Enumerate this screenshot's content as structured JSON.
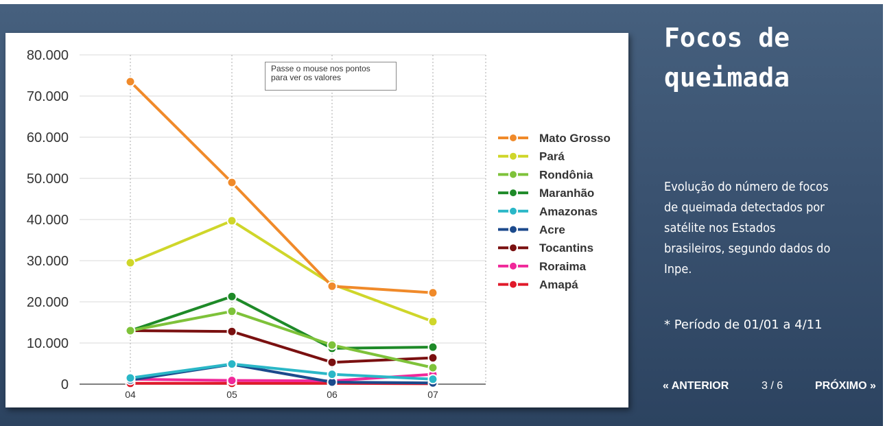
{
  "chart_data": {
    "type": "line",
    "x": [
      "04",
      "05",
      "06",
      "07"
    ],
    "ylim": [
      0,
      80000
    ],
    "yticks": [
      "0",
      "10.000",
      "20.000",
      "30.000",
      "40.000",
      "50.000",
      "60.000",
      "70.000",
      "80.000"
    ],
    "ytick_values": [
      0,
      10000,
      20000,
      30000,
      40000,
      50000,
      60000,
      70000,
      80000
    ],
    "grid": true,
    "legend_position": "right",
    "annotation": [
      "Passe o mouse nos pontos",
      "para ver os valores"
    ],
    "series": [
      {
        "name": "Mato Grosso",
        "color": "#f08a2a",
        "values": [
          73500,
          49000,
          23800,
          22200
        ]
      },
      {
        "name": "Pará",
        "color": "#cfd62a",
        "values": [
          29500,
          39700,
          24300,
          15200
        ]
      },
      {
        "name": "Rondônia",
        "color": "#7ec23a",
        "values": [
          13000,
          17700,
          9500,
          4000
        ]
      },
      {
        "name": "Maranhão",
        "color": "#1e8a28",
        "values": [
          13000,
          21300,
          8700,
          9000
        ]
      },
      {
        "name": "Amazonas",
        "color": "#2ab7c7",
        "values": [
          1500,
          4900,
          2400,
          1200
        ]
      },
      {
        "name": "Acre",
        "color": "#1c4a8c",
        "values": [
          1000,
          4800,
          500,
          300
        ]
      },
      {
        "name": "Tocantins",
        "color": "#7a1010",
        "values": [
          13000,
          12800,
          5300,
          6400
        ]
      },
      {
        "name": "Roraima",
        "color": "#f0289a",
        "values": [
          1200,
          900,
          800,
          2400
        ]
      },
      {
        "name": "Amapá",
        "color": "#e01a2a",
        "values": [
          200,
          200,
          200,
          100
        ]
      }
    ]
  },
  "sidebar": {
    "title_lines": [
      "Focos de",
      "queimada"
    ],
    "description_lines": [
      "Evolução do número de focos",
      "de queimada detectados por",
      "satélite nos Estados",
      "brasileiros, segundo dados do",
      "Inpe."
    ],
    "note": "* Período de 01/01 a 4/11"
  },
  "pager": {
    "prev_label": "« ANTERIOR",
    "page": "3 / 6",
    "next_label": "PRÓXIMO »"
  }
}
